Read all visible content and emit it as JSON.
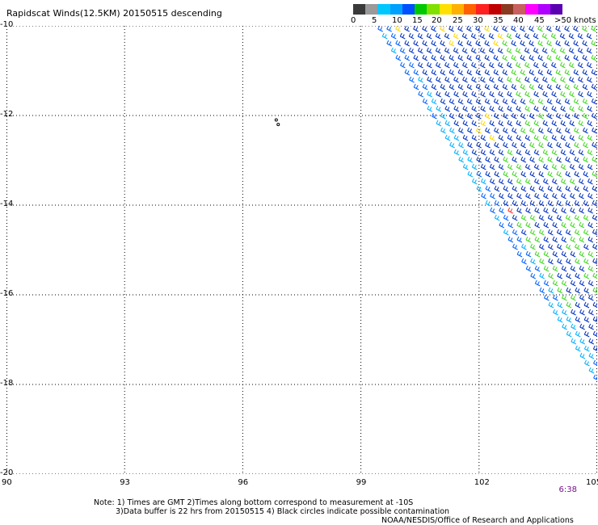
{
  "title": "Rapidscat Winds(12.5KM) 20150515 descending",
  "colorbar": {
    "colors": [
      "#3a3a3a",
      "#9a9a9a",
      "#00c8ff",
      "#00a0ff",
      "#0050ff",
      "#00c800",
      "#80e000",
      "#ffe000",
      "#ffb000",
      "#ff6000",
      "#ff2020",
      "#c00000",
      "#8a3a20",
      "#c86060",
      "#ff00ff",
      "#b000ff",
      "#5a00b0"
    ],
    "labels": [
      "0",
      "5",
      "10",
      "15",
      "20",
      "25",
      "30",
      "35",
      "40",
      "45",
      ">50 knots"
    ]
  },
  "map": {
    "lat_ticks": [
      "-10",
      "-12",
      "-14",
      "-16",
      "-18",
      "-20"
    ],
    "lon_ticks": [
      "90",
      "93",
      "96",
      "99",
      "102",
      "105"
    ],
    "lat_range": [
      -20,
      -10
    ],
    "lon_range": [
      90,
      105
    ],
    "grid": "dotted",
    "swath_edge": [
      [
        99.3,
        -10
      ],
      [
        105,
        -18.1
      ]
    ],
    "land_marks": [
      [
        96.85,
        -12.1
      ],
      [
        96.9,
        -12.2
      ]
    ]
  },
  "time_label": "6:38",
  "notes": [
    "Note: 1) Times are GMT 2)Times along bottom correspond to measurement at -10S",
    "3)Data buffer is 22 hrs from 20150515 4) Black circles indicate possible contamination"
  ],
  "credit": "NOAA/NESDIS/Office of Research and Applications"
}
